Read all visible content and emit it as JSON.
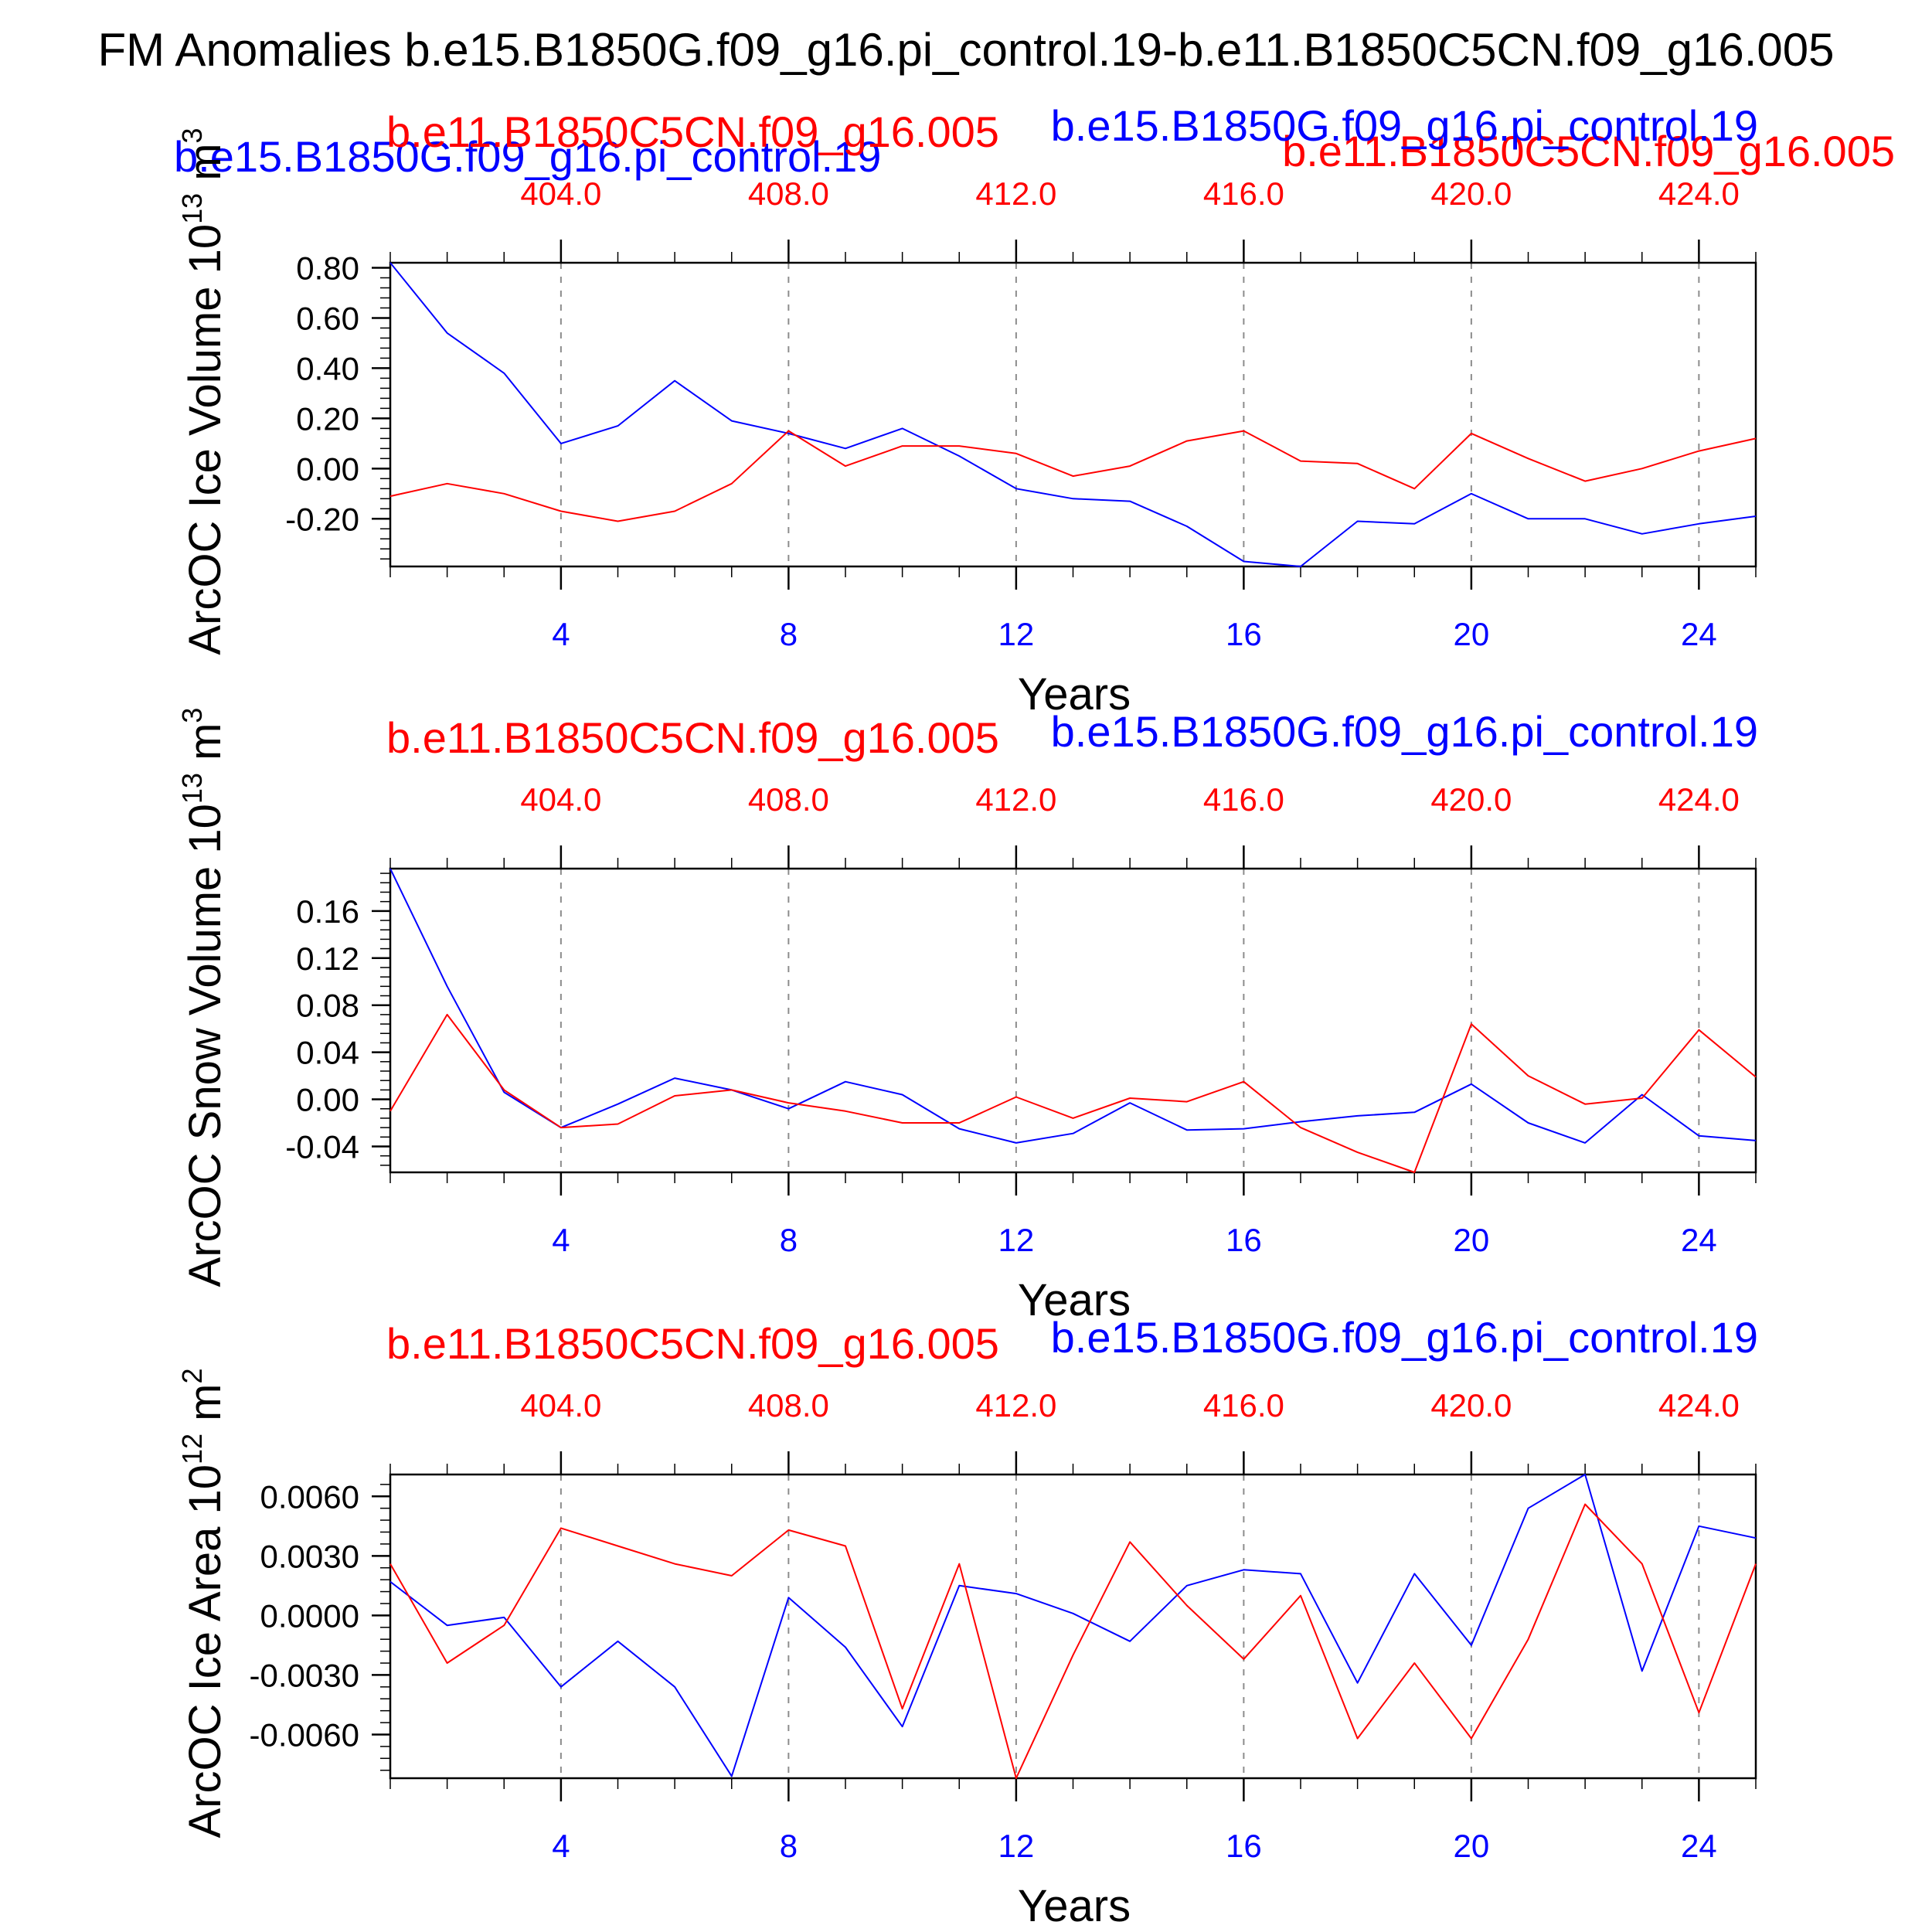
{
  "title": "FM Anomalies b.e15.B1850G.f09_g16.pi_control.19-b.e11.B1850C5CN.f09_g16.005",
  "legend": {
    "blue_label": "b.e15.B1850G.f09_g16.pi_control.19",
    "red_label": "b.e11.B1850C5CN.f09_g16.005"
  },
  "colors": {
    "blue": "#0000ff",
    "red": "#ff0000",
    "black": "#000000",
    "grid": "#8c8c8c"
  },
  "chart_data": [
    {
      "type": "line",
      "id": "ice-volume",
      "ylabel": "ArcOC Ice Volume 10",
      "ylabel_exp": "13",
      "ylabel_unit": " m",
      "ylabel_unit_exp": "3",
      "xlabel": "Years",
      "top_left_label": "b.e11.B1850C5CN.f09_g16.005",
      "top_right_label": "b.e15.B1850G.f09_g16.pi_control.19",
      "ylim": [
        -0.39,
        0.82
      ],
      "yticks": [
        0.8,
        0.6,
        0.4,
        0.2,
        0.0,
        -0.2
      ],
      "ytick_labels": [
        "0.80",
        "0.60",
        "0.40",
        "0.20",
        "0.00",
        "-0.20"
      ],
      "yminor_step": 0.04,
      "xlim": [
        1,
        25
      ],
      "xticks": [
        4,
        8,
        12,
        16,
        20,
        24
      ],
      "xtick_labels": [
        "4",
        "8",
        "12",
        "16",
        "20",
        "24"
      ],
      "top_xticks": [
        404,
        408,
        412,
        416,
        420,
        424
      ],
      "top_xtick_labels": [
        "404.0",
        "408.0",
        "412.0",
        "416.0",
        "420.0",
        "424.0"
      ],
      "x": [
        1,
        2,
        3,
        4,
        5,
        6,
        7,
        8,
        9,
        10,
        11,
        12,
        13,
        14,
        15,
        16,
        17,
        18,
        19,
        20,
        21,
        22,
        23,
        24,
        25
      ],
      "series": [
        {
          "name": "b.e15.B1850G.f09_g16.pi_control.19",
          "color": "blue",
          "values": [
            0.82,
            0.54,
            0.38,
            0.1,
            0.17,
            0.35,
            0.19,
            0.14,
            0.08,
            0.16,
            0.05,
            -0.08,
            -0.12,
            -0.13,
            -0.23,
            -0.37,
            -0.39,
            -0.21,
            -0.22,
            -0.1,
            -0.2,
            -0.2,
            -0.26,
            -0.22,
            -0.19
          ]
        },
        {
          "name": "b.e11.B1850C5CN.f09_g16.005",
          "color": "red",
          "values": [
            -0.11,
            -0.06,
            -0.1,
            -0.17,
            -0.21,
            -0.17,
            -0.06,
            0.15,
            0.01,
            0.09,
            0.09,
            0.06,
            -0.03,
            0.01,
            0.11,
            0.15,
            0.03,
            0.02,
            -0.08,
            0.14,
            0.04,
            -0.05,
            0.0,
            0.07,
            0.12
          ]
        }
      ]
    },
    {
      "type": "line",
      "id": "snow-volume",
      "ylabel": "ArcOC Snow Volume 10",
      "ylabel_exp": "13",
      "ylabel_unit": " m",
      "ylabel_unit_exp": "3",
      "xlabel": "Years",
      "top_left_label": "b.e11.B1850C5CN.f09_g16.005",
      "top_right_label": "b.e15.B1850G.f09_g16.pi_control.19",
      "ylim": [
        -0.062,
        0.196
      ],
      "yticks": [
        0.16,
        0.12,
        0.08,
        0.04,
        0.0,
        -0.04
      ],
      "ytick_labels": [
        "0.16",
        "0.12",
        "0.08",
        "0.04",
        "0.00",
        "-0.04"
      ],
      "yminor_step": 0.008,
      "xlim": [
        1,
        25
      ],
      "xticks": [
        4,
        8,
        12,
        16,
        20,
        24
      ],
      "xtick_labels": [
        "4",
        "8",
        "12",
        "16",
        "20",
        "24"
      ],
      "top_xticks": [
        404,
        408,
        412,
        416,
        420,
        424
      ],
      "top_xtick_labels": [
        "404.0",
        "408.0",
        "412.0",
        "416.0",
        "420.0",
        "424.0"
      ],
      "x": [
        1,
        2,
        3,
        4,
        5,
        6,
        7,
        8,
        9,
        10,
        11,
        12,
        13,
        14,
        15,
        16,
        17,
        18,
        19,
        20,
        21,
        22,
        23,
        24,
        25
      ],
      "series": [
        {
          "name": "b.e15.B1850G.f09_g16.pi_control.19",
          "color": "blue",
          "values": [
            0.196,
            0.096,
            0.006,
            -0.024,
            -0.004,
            0.018,
            0.008,
            -0.008,
            0.015,
            0.004,
            -0.025,
            -0.037,
            -0.029,
            -0.003,
            -0.026,
            -0.025,
            -0.019,
            -0.014,
            -0.011,
            0.013,
            -0.02,
            -0.037,
            0.004,
            -0.031,
            -0.035
          ]
        },
        {
          "name": "b.e11.B1850C5CN.f09_g16.005",
          "color": "red",
          "values": [
            -0.01,
            0.072,
            0.008,
            -0.024,
            -0.021,
            0.003,
            0.008,
            -0.003,
            -0.01,
            -0.02,
            -0.02,
            0.002,
            -0.016,
            0.001,
            -0.002,
            0.015,
            -0.024,
            -0.045,
            -0.062,
            0.064,
            0.02,
            -0.004,
            0.001,
            0.059,
            0.019
          ]
        }
      ]
    },
    {
      "type": "line",
      "id": "ice-area",
      "ylabel": "ArcOC Ice Area 10",
      "ylabel_exp": "12",
      "ylabel_unit": " m",
      "ylabel_unit_exp": "2",
      "xlabel": "Years",
      "top_left_label": "b.e11.B1850C5CN.f09_g16.005",
      "top_right_label": "b.e15.B1850G.f09_g16.pi_control.19",
      "ylim": [
        -0.0082,
        0.0071
      ],
      "yticks": [
        0.006,
        0.003,
        0.0,
        -0.003,
        -0.006
      ],
      "ytick_labels": [
        "0.0060",
        "0.0030",
        "0.0000",
        "-0.0030",
        "-0.0060"
      ],
      "yminor_step": 0.0006,
      "xlim": [
        1,
        25
      ],
      "xticks": [
        4,
        8,
        12,
        16,
        20,
        24
      ],
      "xtick_labels": [
        "4",
        "8",
        "12",
        "16",
        "20",
        "24"
      ],
      "top_xticks": [
        404,
        408,
        412,
        416,
        420,
        424
      ],
      "top_xtick_labels": [
        "404.0",
        "408.0",
        "412.0",
        "416.0",
        "420.0",
        "424.0"
      ],
      "x": [
        1,
        2,
        3,
        4,
        5,
        6,
        7,
        8,
        9,
        10,
        11,
        12,
        13,
        14,
        15,
        16,
        17,
        18,
        19,
        20,
        21,
        22,
        23,
        24,
        25
      ],
      "series": [
        {
          "name": "b.e15.B1850G.f09_g16.pi_control.19",
          "color": "blue",
          "values": [
            0.0017,
            -0.0005,
            -0.0001,
            -0.0036,
            -0.0013,
            -0.0036,
            -0.0081,
            0.0009,
            -0.0016,
            -0.0056,
            0.0015,
            0.0011,
            0.0001,
            -0.0013,
            0.0015,
            0.0023,
            0.0021,
            -0.0034,
            0.0021,
            -0.0015,
            0.0054,
            0.0071,
            -0.0028,
            0.0045,
            0.0039
          ]
        },
        {
          "name": "b.e11.B1850C5CN.f09_g16.005",
          "color": "red",
          "values": [
            0.0026,
            -0.0024,
            -0.0005,
            0.0044,
            0.0035,
            0.0026,
            0.002,
            0.0043,
            0.0035,
            -0.0047,
            0.0026,
            -0.0082,
            -0.002,
            0.0037,
            0.0005,
            -0.0022,
            0.001,
            -0.0062,
            -0.0024,
            -0.0062,
            -0.0012,
            0.0056,
            0.0026,
            -0.0049,
            0.0026
          ]
        }
      ]
    }
  ]
}
